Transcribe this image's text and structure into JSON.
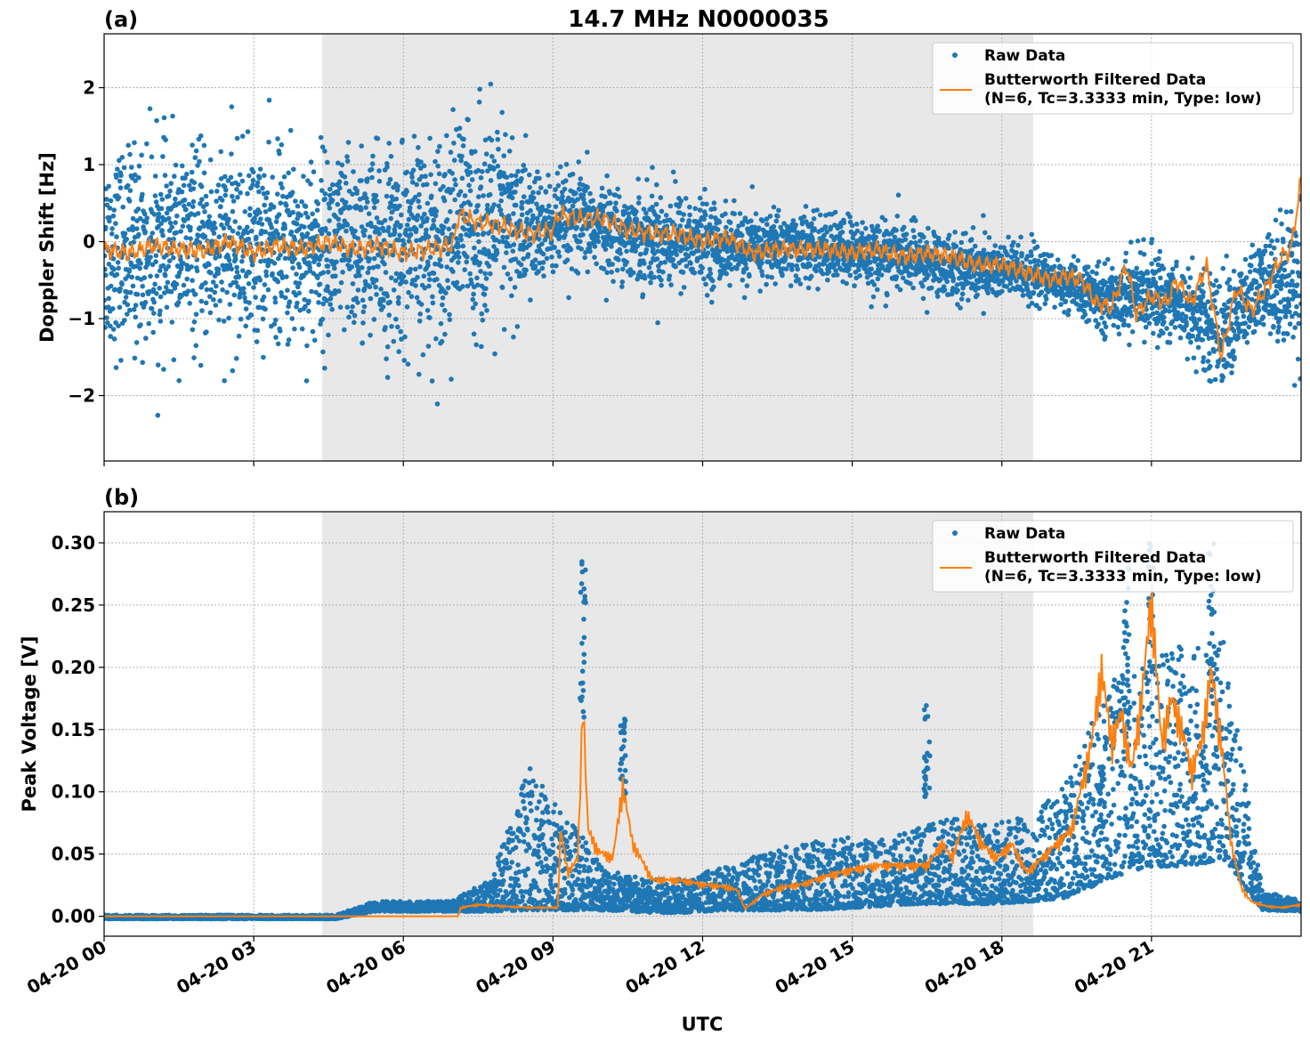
{
  "figure": {
    "title": "14.7 MHz N0000035",
    "xlabel": "UTC",
    "x_tick_labels": [
      "04-20 00",
      "04-20 03",
      "04-20 06",
      "04-20 09",
      "04-20 12",
      "04-20 15",
      "04-20 18",
      "04-20 21"
    ],
    "shading_color": "#e8e8e8",
    "raw_color": "#1f77b4",
    "filtered_color": "#ff7f0e"
  },
  "chart_data": [
    {
      "panel_label": "(a)",
      "type": "scatter",
      "xlabel": "UTC",
      "ylabel": "Doppler Shift [Hz]",
      "x_range_utc_hours": [
        0,
        24
      ],
      "ylim": [
        -2.85,
        2.7
      ],
      "yticks": [
        -2,
        -1,
        0,
        1,
        2
      ],
      "y_tick_labels": [
        "−2",
        "−1",
        "0",
        "1",
        "2"
      ],
      "shaded_interval_utc_hours": [
        4.37,
        18.63
      ],
      "grid": true,
      "legend_position": "top-right",
      "legend": {
        "raw": "Raw Data",
        "filtered_line1": "Butterworth Filtered Data",
        "filtered_line2": "(N=6, Tc=3.3333 min, Type: low)"
      },
      "series": [
        {
          "name": "Butterworth Filtered Data (N=6, Tc=3.3333 min, Type: low)",
          "kind": "line",
          "x_utc_hours": [
            0,
            0.5,
            1,
            1.5,
            2,
            2.5,
            3,
            3.5,
            4,
            4.5,
            5,
            5.5,
            6,
            6.5,
            7,
            7.1,
            7.5,
            8,
            8.5,
            9,
            9.1,
            9.5,
            10,
            10.5,
            11,
            11.5,
            12,
            12.5,
            13,
            13.5,
            14,
            14.5,
            15,
            15.5,
            16,
            16.5,
            17,
            17.5,
            18,
            18.5,
            19,
            19.3,
            19.6,
            19.9,
            20.2,
            20.5,
            20.7,
            21,
            21.3,
            21.5,
            21.8,
            22.1,
            22.4,
            22.7,
            23,
            23.3,
            23.6,
            23.8,
            24
          ],
          "y_hz": [
            -0.1,
            -0.15,
            -0.05,
            -0.1,
            -0.12,
            0,
            -0.15,
            -0.05,
            -0.1,
            0,
            -0.1,
            -0.05,
            -0.15,
            -0.1,
            -0.05,
            0.35,
            0.25,
            0.2,
            0.1,
            0.15,
            0.35,
            0.3,
            0.3,
            0.15,
            0.1,
            0.1,
            0,
            0.05,
            -0.15,
            -0.1,
            -0.1,
            -0.1,
            -0.15,
            -0.1,
            -0.2,
            -0.15,
            -0.2,
            -0.3,
            -0.3,
            -0.4,
            -0.5,
            -0.45,
            -0.5,
            -0.8,
            -0.85,
            -0.3,
            -0.95,
            -0.7,
            -0.8,
            -0.5,
            -0.8,
            -0.3,
            -1.5,
            -0.6,
            -0.9,
            -0.6,
            -0.2,
            -0.1,
            0.8
          ]
        },
        {
          "name": "Raw Data",
          "kind": "scatter",
          "scatter_band_center_hz": [
            -0.1,
            -0.1,
            -0.05,
            -0.1,
            -0.05,
            -0.1,
            -0.05,
            -0.1,
            -0.05,
            0.25,
            0.2,
            0.15,
            0.25,
            0.1,
            0.05,
            0,
            -0.1,
            -0.05,
            -0.1,
            -0.15,
            -0.2,
            -0.3,
            -0.35,
            -0.4,
            -0.55,
            -0.75,
            -0.65,
            -0.8,
            -1.2,
            -0.6,
            -0.4
          ],
          "scatter_band_halfwidth_hz": [
            0.85,
            0.85,
            0.8,
            0.8,
            0.8,
            0.8,
            0.8,
            0.85,
            0.85,
            0.9,
            0.9,
            0.45,
            0.4,
            0.35,
            0.45,
            0.35,
            0.3,
            0.3,
            0.28,
            0.3,
            0.28,
            0.28,
            0.28,
            0.25,
            0.2,
            0.25,
            0.35,
            0.35,
            0.45,
            0.4,
            0.7
          ]
        }
      ]
    },
    {
      "panel_label": "(b)",
      "type": "scatter",
      "xlabel": "UTC",
      "ylabel": "Peak Voltage [V]",
      "x_range_utc_hours": [
        0,
        24
      ],
      "ylim": [
        -0.016,
        0.325
      ],
      "yticks": [
        0,
        0.05,
        0.1,
        0.15,
        0.2,
        0.25,
        0.3
      ],
      "y_tick_labels": [
        "0.00",
        "0.05",
        "0.10",
        "0.15",
        "0.20",
        "0.25",
        "0.30"
      ],
      "shaded_interval_utc_hours": [
        4.37,
        18.63
      ],
      "grid": true,
      "legend_position": "top-right",
      "legend": {
        "raw": "Raw Data",
        "filtered_line1": "Butterworth Filtered Data",
        "filtered_line2": "(N=6, Tc=3.3333 min, Type: low)"
      },
      "series": [
        {
          "name": "Butterworth Filtered Data (N=6, Tc=3.3333 min, Type: low)",
          "kind": "line",
          "x_utc_hours": [
            0,
            7.1,
            7.15,
            7.5,
            8,
            8.5,
            9,
            9.1,
            9.15,
            9.3,
            9.5,
            9.6,
            9.7,
            9.9,
            10.2,
            10.4,
            10.6,
            11,
            11.5,
            12,
            12.5,
            12.7,
            12.85,
            13.2,
            13.6,
            14,
            14.5,
            15,
            15.5,
            16,
            16.5,
            16.8,
            17,
            17.3,
            17.6,
            17.9,
            18.2,
            18.5,
            18.8,
            19.1,
            19.4,
            19.6,
            19.8,
            20,
            20.2,
            20.4,
            20.6,
            20.8,
            21,
            21.2,
            21.4,
            21.6,
            21.8,
            22,
            22.2,
            22.4,
            22.6,
            22.8,
            23,
            23.3,
            23.6,
            24
          ],
          "y_v": [
            0,
            0,
            0.006,
            0.008,
            0.007,
            0.006,
            0.006,
            0.006,
            0.06,
            0.03,
            0.04,
            0.15,
            0.06,
            0.045,
            0.04,
            0.09,
            0.05,
            0.025,
            0.025,
            0.022,
            0.02,
            0.018,
            0.005,
            0.015,
            0.02,
            0.022,
            0.028,
            0.032,
            0.035,
            0.035,
            0.035,
            0.05,
            0.04,
            0.07,
            0.05,
            0.04,
            0.05,
            0.03,
            0.04,
            0.05,
            0.06,
            0.09,
            0.12,
            0.17,
            0.12,
            0.14,
            0.1,
            0.15,
            0.22,
            0.12,
            0.15,
            0.13,
            0.1,
            0.12,
            0.17,
            0.12,
            0.05,
            0.02,
            0.01,
            0.007,
            0.006,
            0.008
          ]
        },
        {
          "name": "Raw Data",
          "kind": "scatter",
          "scatter_band_low_v": [
            -0.002,
            -0.002,
            -0.002,
            -0.002,
            -0.002,
            -0.002,
            -0.002,
            0.004,
            0.004,
            0.004,
            0.004,
            0.005,
            0.005,
            0.005,
            0.003,
            0.003,
            0.005,
            0.005,
            0.005,
            0.006,
            0.008,
            0.01,
            0.01,
            0.01,
            0.012,
            0.015,
            0.03,
            0.04,
            0.04,
            0.045,
            0.005,
            0.004
          ],
          "scatter_band_high_v": [
            0.001,
            0.001,
            0.001,
            0.001,
            0.001,
            0.001,
            0.001,
            0.012,
            0.012,
            0.012,
            0.03,
            0.12,
            0.08,
            0.04,
            0.03,
            0.03,
            0.04,
            0.05,
            0.06,
            0.065,
            0.06,
            0.07,
            0.08,
            0.075,
            0.08,
            0.11,
            0.19,
            0.2,
            0.23,
            0.22,
            0.02,
            0.013
          ],
          "peak_values_v": [
            0.285,
            0.16,
            0.17,
            0.12,
            0.3,
            0.305,
            0.28
          ]
        }
      ]
    }
  ]
}
